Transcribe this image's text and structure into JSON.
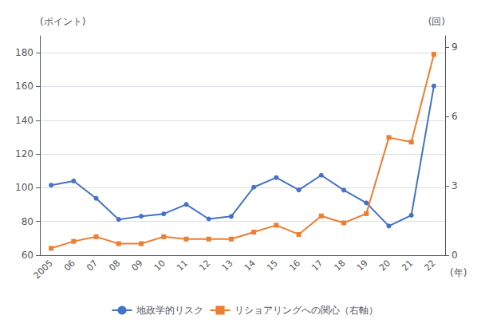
{
  "chart_data": {
    "type": "line",
    "ylabel": "(ポイント)",
    "y2label": "(回)",
    "xlabel": "(年)",
    "categories": [
      "2005",
      "06",
      "07",
      "08",
      "09",
      "10",
      "11",
      "12",
      "13",
      "14",
      "15",
      "16",
      "17",
      "18",
      "19",
      "20",
      "21",
      "22"
    ],
    "series": [
      {
        "name": "地政学的リスク",
        "color": "#4472C4",
        "marker": "circle",
        "values": [
          101.5,
          104.0,
          93.7,
          81.2,
          83.1,
          84.5,
          90.1,
          81.5,
          83.0,
          100.3,
          106.0,
          98.7,
          107.4,
          98.6,
          91.0,
          77.3,
          83.7,
          160.3
        ]
      },
      {
        "name": "リショアリングへの関心（右軸）",
        "color": "#ED7D31",
        "marker": "square",
        "axis": "y2",
        "values": [
          0.3,
          0.6,
          0.8,
          0.5,
          0.5,
          0.8,
          0.7,
          0.7,
          0.7,
          1.0,
          1.3,
          0.9,
          1.7,
          1.4,
          1.8,
          5.1,
          4.9,
          8.7
        ]
      }
    ],
    "ylim": [
      60,
      190
    ],
    "yticks": [
      60,
      80,
      100,
      120,
      140,
      160,
      180
    ],
    "y2lim": [
      0,
      9.5
    ],
    "y2ticks": [
      0,
      3,
      6,
      9
    ],
    "grid": true,
    "legend": "bottom"
  }
}
